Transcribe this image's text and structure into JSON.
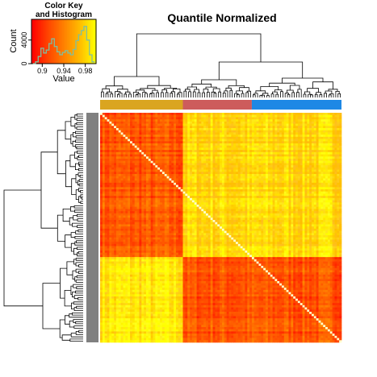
{
  "chart_data": {
    "type": "heatmap",
    "title": "Quantile Normalized",
    "color_key": {
      "title_line1": "Color Key",
      "title_line2": "and Histogram",
      "xlabel": "Value",
      "ylabel": "Count",
      "x_ticks": [
        "0.9",
        "0.94",
        "0.98"
      ],
      "x_tick_values": [
        0.9,
        0.94,
        0.98
      ],
      "y_ticks": [
        "0",
        "4000"
      ],
      "y_tick_values": [
        0,
        4000
      ],
      "x_range": [
        0.88,
        1.0
      ],
      "y_range": [
        0,
        7500
      ],
      "histogram_line_color": "#7fbf9f",
      "histogram": {
        "x": [
          0.885,
          0.89,
          0.895,
          0.9,
          0.905,
          0.91,
          0.915,
          0.92,
          0.925,
          0.93,
          0.935,
          0.94,
          0.945,
          0.95,
          0.955,
          0.96,
          0.965,
          0.97,
          0.975,
          0.98,
          0.985,
          0.99,
          0.995
        ],
        "counts": [
          0,
          300,
          1200,
          2600,
          1800,
          2300,
          3400,
          4200,
          2900,
          2000,
          1500,
          1900,
          2200,
          1800,
          1500,
          2400,
          3900,
          4900,
          5600,
          6300,
          4000,
          1500,
          300
        ]
      }
    },
    "colormap": [
      "#ff0000",
      "#ff4400",
      "#ff8000",
      "#ffbb00",
      "#ffff00"
    ],
    "groups": [
      {
        "color": "#daa520",
        "size": 36
      },
      {
        "color": "#cd5c5c",
        "size": 30
      },
      {
        "color": "#1e88e5",
        "size": 39
      }
    ],
    "row_clusters": [
      {
        "size": 66,
        "color_in": "#ff5200",
        "color_out": "#ffd500"
      },
      {
        "size": 39,
        "color_in": "#ff5200",
        "color_out": "#ffe600"
      }
    ],
    "diagonal_color": "#ffffcc"
  }
}
